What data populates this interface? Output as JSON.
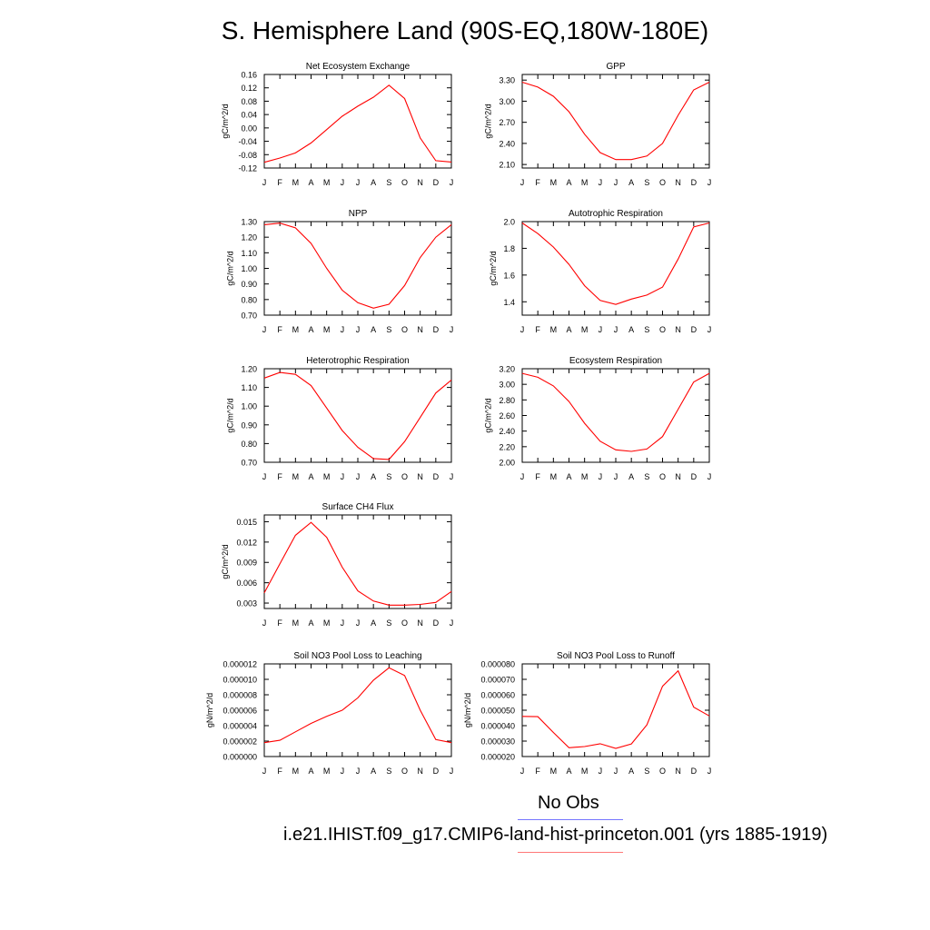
{
  "figure": {
    "title": "S. Hemisphere Land (90S-EQ,180W-180E)"
  },
  "legend": {
    "obs_label": "No Obs",
    "obs_color": "#7777ff",
    "model_label": "i.e21.IHIST.f09_g17.CMIP6-land-hist-princeton.001 (yrs 1885-1919)",
    "model_color": "#ff7777"
  },
  "line_color": "#ff0000",
  "chart_data": [
    {
      "type": "line",
      "title": "Net Ecosystem Exchange",
      "ylabel": "gC/m^2/d",
      "categories": [
        "J",
        "F",
        "M",
        "A",
        "M",
        "J",
        "J",
        "A",
        "S",
        "O",
        "N",
        "D",
        "J"
      ],
      "ylim": [
        -0.12,
        0.16
      ],
      "yticks": [
        "-0.12",
        "-0.08",
        "-0.04",
        "0.00",
        "0.04",
        "0.08",
        "0.12",
        "0.16"
      ],
      "series": [
        {
          "values": [
            -0.103,
            -0.09,
            -0.075,
            -0.045,
            -0.005,
            0.035,
            0.065,
            0.092,
            0.128,
            0.088,
            -0.03,
            -0.098,
            -0.102
          ]
        }
      ]
    },
    {
      "type": "line",
      "title": "GPP",
      "ylabel": "gC/m^2/d",
      "categories": [
        "J",
        "F",
        "M",
        "A",
        "M",
        "J",
        "J",
        "A",
        "S",
        "O",
        "N",
        "D",
        "J"
      ],
      "ylim": [
        2.05,
        3.38
      ],
      "yticks": [
        "2.10",
        "2.40",
        "2.70",
        "3.00",
        "3.30"
      ],
      "series": [
        {
          "values": [
            3.27,
            3.2,
            3.07,
            2.85,
            2.53,
            2.27,
            2.17,
            2.17,
            2.22,
            2.4,
            2.8,
            3.16,
            3.27
          ]
        }
      ]
    },
    {
      "type": "line",
      "title": "NPP",
      "ylabel": "gC/m^2/d",
      "categories": [
        "J",
        "F",
        "M",
        "A",
        "M",
        "J",
        "J",
        "A",
        "S",
        "O",
        "N",
        "D",
        "J"
      ],
      "ylim": [
        0.7,
        1.3
      ],
      "yticks": [
        "0.70",
        "0.80",
        "0.90",
        "1.00",
        "1.10",
        "1.20",
        "1.30"
      ],
      "series": [
        {
          "values": [
            1.28,
            1.29,
            1.26,
            1.16,
            1.0,
            0.86,
            0.78,
            0.745,
            0.77,
            0.89,
            1.07,
            1.2,
            1.28
          ]
        }
      ]
    },
    {
      "type": "line",
      "title": "Autotrophic Respiration",
      "ylabel": "gC/m^2/d",
      "categories": [
        "J",
        "F",
        "M",
        "A",
        "M",
        "J",
        "J",
        "A",
        "S",
        "O",
        "N",
        "D",
        "J"
      ],
      "ylim": [
        1.3,
        2.0
      ],
      "yticks": [
        "1.4",
        "1.6",
        "1.8",
        "2.0"
      ],
      "series": [
        {
          "values": [
            1.99,
            1.91,
            1.81,
            1.68,
            1.52,
            1.41,
            1.38,
            1.42,
            1.45,
            1.51,
            1.72,
            1.96,
            1.99
          ]
        }
      ]
    },
    {
      "type": "line",
      "title": "Heterotrophic Respiration",
      "ylabel": "gC/m^2/d",
      "categories": [
        "J",
        "F",
        "M",
        "A",
        "M",
        "J",
        "J",
        "A",
        "S",
        "O",
        "N",
        "D",
        "J"
      ],
      "ylim": [
        0.7,
        1.2
      ],
      "yticks": [
        "0.70",
        "0.80",
        "0.90",
        "1.00",
        "1.10",
        "1.20"
      ],
      "series": [
        {
          "values": [
            1.15,
            1.18,
            1.17,
            1.11,
            0.99,
            0.87,
            0.78,
            0.72,
            0.715,
            0.81,
            0.94,
            1.07,
            1.14
          ]
        }
      ]
    },
    {
      "type": "line",
      "title": "Ecosystem Respiration",
      "ylabel": "gC/m^2/d",
      "categories": [
        "J",
        "F",
        "M",
        "A",
        "M",
        "J",
        "J",
        "A",
        "S",
        "O",
        "N",
        "D",
        "J"
      ],
      "ylim": [
        2.0,
        3.2
      ],
      "yticks": [
        "2.00",
        "2.20",
        "2.40",
        "2.60",
        "2.80",
        "3.00",
        "3.20"
      ],
      "series": [
        {
          "values": [
            3.14,
            3.09,
            2.98,
            2.78,
            2.5,
            2.27,
            2.16,
            2.14,
            2.17,
            2.33,
            2.68,
            3.03,
            3.14
          ]
        }
      ]
    },
    {
      "type": "line",
      "title": "Surface CH4 Flux",
      "ylabel": "gC/m^2/d",
      "categories": [
        "J",
        "F",
        "M",
        "A",
        "M",
        "J",
        "J",
        "A",
        "S",
        "O",
        "N",
        "D",
        "J"
      ],
      "ylim": [
        0.0022,
        0.016
      ],
      "yticks": [
        "0.003",
        "0.006",
        "0.009",
        "0.012",
        "0.015"
      ],
      "series": [
        {
          "values": [
            0.0045,
            0.0088,
            0.013,
            0.0149,
            0.0127,
            0.0083,
            0.0048,
            0.0033,
            0.0027,
            0.0027,
            0.0028,
            0.0031,
            0.0047
          ]
        }
      ]
    },
    {
      "type": "line",
      "title": "Soil NO3 Pool Loss to Leaching",
      "ylabel": "gN/m^2/d",
      "categories": [
        "J",
        "F",
        "M",
        "A",
        "M",
        "J",
        "J",
        "A",
        "S",
        "O",
        "N",
        "D",
        "J"
      ],
      "ylim": [
        0.0,
        1.2e-05
      ],
      "yticks": [
        "0.000000",
        "0.000002",
        "0.000004",
        "0.000006",
        "0.000008",
        "0.000010",
        "0.000012"
      ],
      "series": [
        {
          "values": [
            1.8e-06,
            2.1e-06,
            3.2e-06,
            4.3e-06,
            5.2e-06,
            6e-06,
            7.6e-06,
            9.9e-06,
            1.15e-05,
            1.05e-05,
            6e-06,
            2.2e-06,
            1.8e-06
          ]
        }
      ]
    },
    {
      "type": "line",
      "title": "Soil NO3 Pool Loss to Runoff",
      "ylabel": "gN/m^2/d",
      "categories": [
        "J",
        "F",
        "M",
        "A",
        "M",
        "J",
        "J",
        "A",
        "S",
        "O",
        "N",
        "D",
        "J"
      ],
      "ylim": [
        2e-05,
        8e-05
      ],
      "yticks": [
        "0.000020",
        "0.000030",
        "0.000040",
        "0.000050",
        "0.000060",
        "0.000070",
        "0.000080"
      ],
      "series": [
        {
          "values": [
            4.6e-05,
            4.58e-05,
            3.56e-05,
            2.57e-05,
            2.65e-05,
            2.83e-05,
            2.53e-05,
            2.82e-05,
            4.05e-05,
            6.55e-05,
            7.55e-05,
            5.2e-05,
            4.63e-05
          ]
        }
      ]
    }
  ]
}
